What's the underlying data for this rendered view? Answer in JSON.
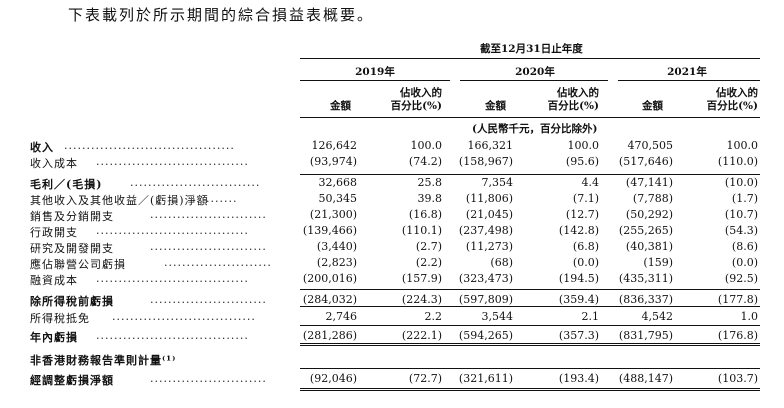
{
  "intro": "下表載列於所示期間的綜合損益表概要。",
  "period_header": "截至12月31日止年度",
  "years": [
    "2019年",
    "2020年",
    "2021年"
  ],
  "col_amount": "金額",
  "col_pct_line1": "佔收入的",
  "col_pct_line2": "百分比(%)",
  "unit_note": "(人民幣千元，百分比除外)",
  "rows": [
    {
      "label": "收入",
      "dots": "......................................",
      "v": [
        "126,642",
        "100.0",
        "166,321",
        "100.0",
        "470,505",
        "100.0"
      ]
    },
    {
      "label": "收入成本",
      "dots": "..................................",
      "v": [
        "(93,974)",
        "(74.2)",
        "(158,967)",
        "(95.6)",
        "(517,646)",
        "(110.0)"
      ]
    },
    {
      "label": "毛利／(毛損)",
      "dots": ".............................",
      "v": [
        "32,668",
        "25.8",
        "7,354",
        "4.4",
        "(47,141)",
        "(10.0)"
      ]
    },
    {
      "label": "其他收入及其他收益／(虧損)淨額",
      "dots": ".......",
      "v": [
        "50,345",
        "39.8",
        "(11,806)",
        "(7.1)",
        "(7,788)",
        "(1.7)"
      ]
    },
    {
      "label": "銷售及分銷開支",
      "dots": "..........................",
      "v": [
        "(21,300)",
        "(16.8)",
        "(21,045)",
        "(12.7)",
        "(50,292)",
        "(10.7)"
      ]
    },
    {
      "label": "行政開支",
      "dots": "..................................",
      "v": [
        "(139,466)",
        "(110.1)",
        "(237,498)",
        "(142.8)",
        "(255,265)",
        "(54.3)"
      ]
    },
    {
      "label": "研究及開發開支",
      "dots": "..........................",
      "v": [
        "(3,440)",
        "(2.7)",
        "(11,273)",
        "(6.8)",
        "(40,381)",
        "(8.6)"
      ]
    },
    {
      "label": "應佔聯營公司虧損",
      "dots": "........................",
      "v": [
        "(2,823)",
        "(2.2)",
        "(68)",
        "(0.0)",
        "(159)",
        "(0.0)"
      ]
    },
    {
      "label": "融資成本",
      "dots": "..................................",
      "v": [
        "(200,016)",
        "(157.9)",
        "(323,473)",
        "(194.5)",
        "(435,311)",
        "(92.5)"
      ]
    },
    {
      "label": "除所得稅前虧損",
      "dots": "..........................",
      "v": [
        "(284,032)",
        "(224.3)",
        "(597,809)",
        "(359.4)",
        "(836,337)",
        "(177.8)"
      ]
    },
    {
      "label": "所得稅抵免",
      "dots": "................................",
      "v": [
        "2,746",
        "2.2",
        "3,544",
        "2.1",
        "4,542",
        "1.0"
      ]
    },
    {
      "label": "年內虧損",
      "dots": "..................................",
      "v": [
        "(281,286)",
        "(222.1)",
        "(594,265)",
        "(357.3)",
        "(831,795)",
        "(176.8)"
      ]
    },
    {
      "label": "非香港財務報告準則計量⁽¹⁾",
      "dots": "",
      "v": [
        "",
        "",
        "",
        "",
        "",
        ""
      ]
    },
    {
      "label": "經調整虧損淨額",
      "dots": "..........................",
      "v": [
        "(92,046)",
        "(72.7)",
        "(321,611)",
        "(193.4)",
        "(488,147)",
        "(103.7)"
      ]
    }
  ]
}
